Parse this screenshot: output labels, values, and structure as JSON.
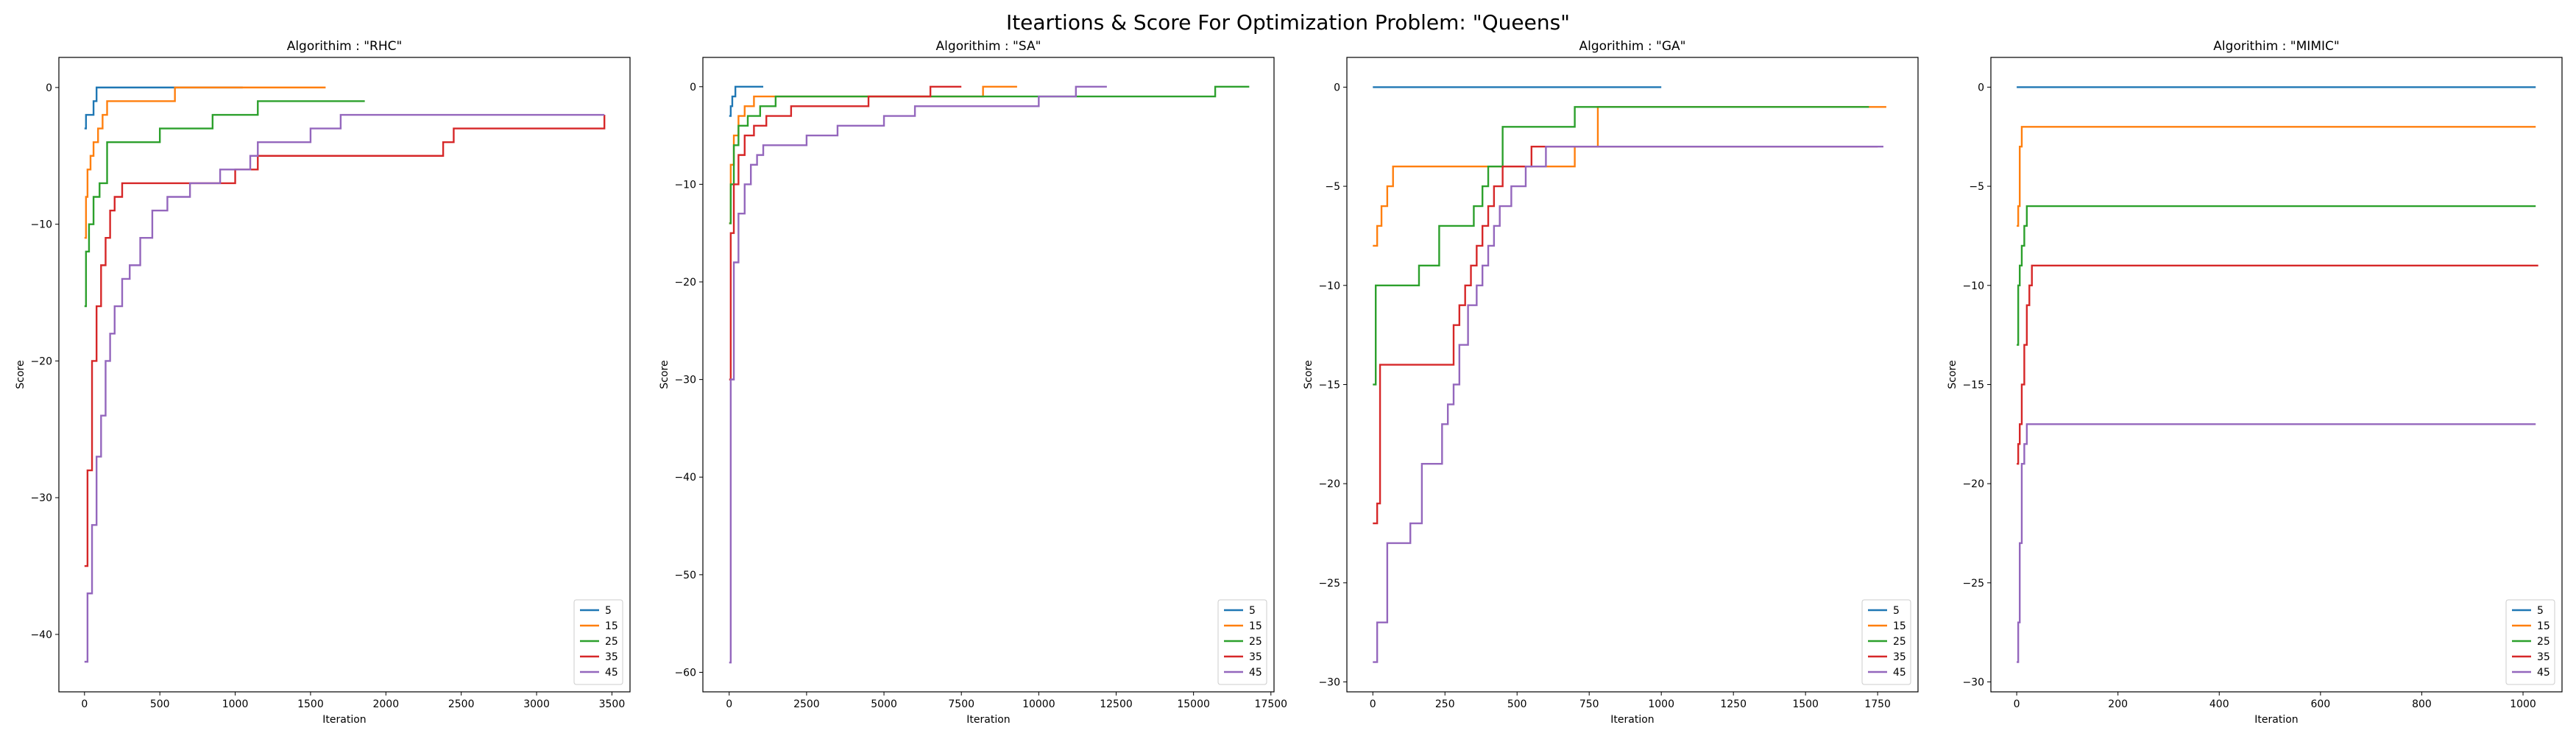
{
  "figure_title": "Iteartions & Score For Optimization Problem: \"Queens\"",
  "colors": [
    "#1f77b4",
    "#ff7f0e",
    "#2ca02c",
    "#d62728",
    "#9467bd"
  ],
  "chart_data": [
    {
      "type": "line",
      "title": "Algorithim : \"RHC\"",
      "xlabel": "Iteration",
      "ylabel": "Score",
      "xlim": [
        -170,
        3620
      ],
      "ylim": [
        -44.2,
        2.2
      ],
      "xticks": [
        0,
        500,
        1000,
        1500,
        2000,
        2500,
        3000,
        3500
      ],
      "yticks": [
        0,
        -10,
        -20,
        -30,
        -40
      ],
      "legend_position": "lower right",
      "series": [
        {
          "name": "5",
          "x": [
            0,
            8,
            10,
            20,
            30,
            40,
            60,
            80,
            100,
            1050
          ],
          "y": [
            -3,
            -3,
            -2,
            -2,
            -2,
            -2,
            -1,
            0,
            0,
            0
          ]
        },
        {
          "name": "15",
          "x": [
            0,
            10,
            20,
            40,
            60,
            90,
            120,
            150,
            600,
            1600
          ],
          "y": [
            -11,
            -8,
            -6,
            -5,
            -4,
            -3,
            -2,
            -1,
            0,
            0
          ]
        },
        {
          "name": "25",
          "x": [
            0,
            10,
            30,
            60,
            100,
            150,
            300,
            500,
            850,
            1150,
            1860
          ],
          "y": [
            -16,
            -12,
            -10,
            -8,
            -7,
            -4,
            -4,
            -3,
            -2,
            -1,
            -1
          ]
        },
        {
          "name": "35",
          "x": [
            0,
            20,
            50,
            80,
            110,
            140,
            170,
            200,
            250,
            450,
            650,
            1000,
            1150,
            2200,
            2380,
            2450,
            3450
          ],
          "y": [
            -35,
            -28,
            -20,
            -16,
            -13,
            -11,
            -9,
            -8,
            -7,
            -7,
            -7,
            -6,
            -5,
            -5,
            -4,
            -3,
            -2
          ]
        },
        {
          "name": "45",
          "x": [
            0,
            20,
            50,
            80,
            110,
            140,
            170,
            200,
            250,
            300,
            370,
            450,
            550,
            700,
            900,
            1100,
            1150,
            1500,
            1700,
            1800,
            3450
          ],
          "y": [
            -42,
            -37,
            -32,
            -27,
            -24,
            -20,
            -18,
            -16,
            -14,
            -13,
            -11,
            -9,
            -8,
            -7,
            -6,
            -5,
            -4,
            -3,
            -2,
            -2,
            -2
          ]
        }
      ]
    },
    {
      "type": "line",
      "title": "Algorithim : \"SA\"",
      "xlabel": "Iteration",
      "ylabel": "Score",
      "xlim": [
        -850,
        17600
      ],
      "ylim": [
        -62.0,
        3.0
      ],
      "xticks": [
        0,
        2500,
        5000,
        7500,
        10000,
        12500,
        15000,
        17500
      ],
      "yticks": [
        0,
        -10,
        -20,
        -30,
        -40,
        -50,
        -60
      ],
      "legend_position": "lower right",
      "series": [
        {
          "name": "5",
          "x": [
            0,
            50,
            100,
            200,
            300,
            1100
          ],
          "y": [
            -3,
            -2,
            -1,
            0,
            0,
            0
          ]
        },
        {
          "name": "15",
          "x": [
            0,
            50,
            150,
            300,
            500,
            800,
            8200,
            9300
          ],
          "y": [
            -14,
            -8,
            -5,
            -3,
            -2,
            -1,
            0,
            0
          ]
        },
        {
          "name": "25",
          "x": [
            0,
            50,
            150,
            300,
            600,
            1000,
            1500,
            15700,
            16800
          ],
          "y": [
            -14,
            -10,
            -6,
            -4,
            -3,
            -2,
            -1,
            0,
            0
          ]
        },
        {
          "name": "35",
          "x": [
            0,
            50,
            150,
            300,
            500,
            800,
            1200,
            2000,
            4500,
            6500,
            7500
          ],
          "y": [
            -30,
            -15,
            -10,
            -7,
            -5,
            -4,
            -3,
            -2,
            -1,
            0,
            0
          ]
        },
        {
          "name": "45",
          "x": [
            0,
            50,
            150,
            300,
            500,
            700,
            900,
            1100,
            2500,
            3500,
            5000,
            6000,
            10000,
            11200,
            12200
          ],
          "y": [
            -59,
            -30,
            -18,
            -13,
            -10,
            -8,
            -7,
            -6,
            -5,
            -4,
            -3,
            -2,
            -1,
            0,
            0
          ]
        }
      ]
    },
    {
      "type": "line",
      "title": "Algorithim : \"GA\"",
      "xlabel": "Iteration",
      "ylabel": "Score",
      "xlim": [
        -90,
        1890
      ],
      "ylim": [
        -30.5,
        1.5
      ],
      "xticks": [
        0,
        250,
        500,
        750,
        1000,
        1250,
        1500,
        1750
      ],
      "yticks": [
        0,
        -5,
        -10,
        -15,
        -20,
        -25,
        -30
      ],
      "legend_position": "lower right",
      "series": [
        {
          "name": "5",
          "x": [
            0,
            1000
          ],
          "y": [
            0,
            0
          ]
        },
        {
          "name": "15",
          "x": [
            0,
            15,
            30,
            50,
            70,
            90,
            700,
            780,
            1780
          ],
          "y": [
            -8,
            -7,
            -6,
            -5,
            -4,
            -4,
            -3,
            -1,
            -1
          ]
        },
        {
          "name": "25",
          "x": [
            0,
            10,
            160,
            180,
            230,
            350,
            380,
            400,
            450,
            700,
            1720
          ],
          "y": [
            -15,
            -10,
            -9,
            -9,
            -7,
            -6,
            -5,
            -4,
            -2,
            -1,
            -1
          ]
        },
        {
          "name": "35",
          "x": [
            0,
            15,
            25,
            270,
            280,
            300,
            320,
            340,
            360,
            380,
            400,
            420,
            450,
            470,
            500,
            550,
            1750
          ],
          "y": [
            -22,
            -21,
            -14,
            -14,
            -12,
            -11,
            -10,
            -9,
            -8,
            -7,
            -6,
            -5,
            -4,
            -4,
            -4,
            -3,
            -3
          ]
        },
        {
          "name": "45",
          "x": [
            0,
            15,
            50,
            130,
            170,
            240,
            260,
            280,
            300,
            330,
            360,
            380,
            400,
            420,
            440,
            460,
            480,
            530,
            600,
            770,
            1770
          ],
          "y": [
            -29,
            -27,
            -23,
            -22,
            -19,
            -17,
            -16,
            -15,
            -13,
            -11,
            -10,
            -9,
            -8,
            -7,
            -6,
            -6,
            -5,
            -4,
            -3,
            -3,
            -3
          ]
        }
      ]
    },
    {
      "type": "line",
      "title": "Algorithim : \"MIMIC\"",
      "xlabel": "Iteration",
      "ylabel": "Score",
      "xlim": [
        -51,
        1077
      ],
      "ylim": [
        -30.5,
        1.5
      ],
      "xticks": [
        0,
        200,
        400,
        600,
        800,
        1000
      ],
      "yticks": [
        0,
        -5,
        -10,
        -15,
        -20,
        -25,
        -30
      ],
      "legend_position": "lower right",
      "series": [
        {
          "name": "5",
          "x": [
            0,
            1025
          ],
          "y": [
            0,
            0
          ]
        },
        {
          "name": "15",
          "x": [
            0,
            3,
            6,
            10,
            1025
          ],
          "y": [
            -7,
            -6,
            -3,
            -2,
            -2
          ]
        },
        {
          "name": "25",
          "x": [
            0,
            3,
            6,
            10,
            15,
            20,
            1025
          ],
          "y": [
            -13,
            -10,
            -9,
            -8,
            -7,
            -6,
            -6
          ]
        },
        {
          "name": "35",
          "x": [
            0,
            3,
            6,
            10,
            15,
            20,
            25,
            30,
            1030
          ],
          "y": [
            -19,
            -18,
            -17,
            -15,
            -13,
            -11,
            -10,
            -9,
            -9
          ]
        },
        {
          "name": "45",
          "x": [
            0,
            3,
            6,
            10,
            15,
            20,
            1025
          ],
          "y": [
            -29,
            -27,
            -23,
            -19,
            -18,
            -17,
            -17
          ]
        }
      ]
    }
  ]
}
